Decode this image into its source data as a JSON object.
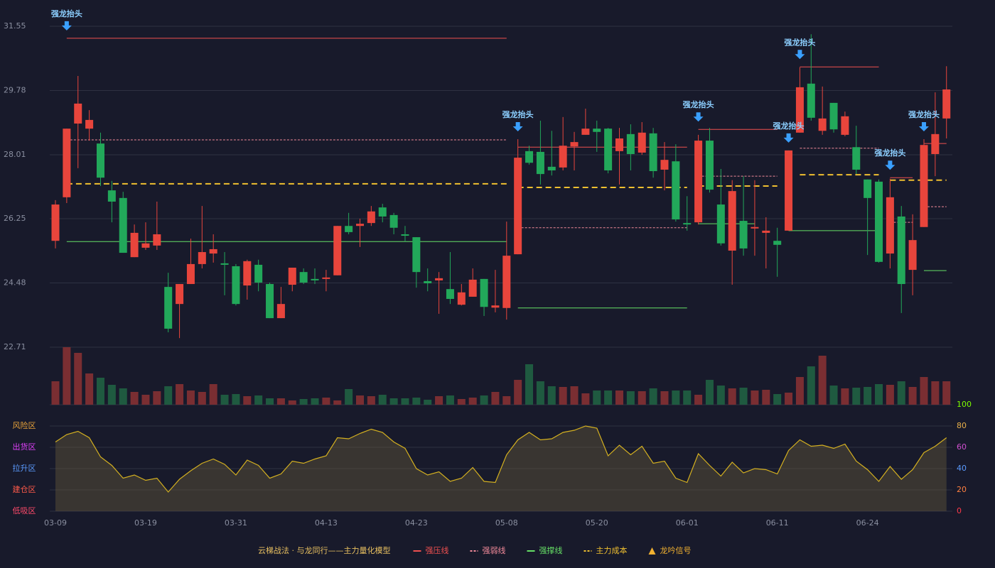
{
  "chart_data": {
    "type": "candlestick",
    "categories": [
      "03-09",
      null,
      null,
      null,
      null,
      null,
      null,
      null,
      "03-19",
      null,
      null,
      null,
      null,
      null,
      null,
      null,
      "03-31",
      null,
      null,
      null,
      null,
      null,
      null,
      null,
      "04-13",
      null,
      null,
      null,
      null,
      null,
      null,
      null,
      "04-23",
      null,
      null,
      null,
      null,
      null,
      null,
      null,
      "05-08",
      null,
      null,
      null,
      null,
      null,
      null,
      null,
      "05-20",
      null,
      null,
      null,
      null,
      null,
      null,
      null,
      "06-01",
      null,
      null,
      null,
      null,
      null,
      null,
      null,
      "06-11",
      null,
      null,
      null,
      null,
      null,
      null,
      null,
      "06-24",
      null,
      null,
      null,
      null,
      null,
      null,
      null
    ],
    "open": [
      25.64,
      26.84,
      28.87,
      28.73,
      28.32,
      27.03,
      26.82,
      25.19,
      25.45,
      25.51,
      24.37,
      23.9,
      24.45,
      25.0,
      25.29,
      25.02,
      24.94,
      24.41,
      24.98,
      24.45,
      23.51,
      24.43,
      24.78,
      24.59,
      24.59,
      24.69,
      26.05,
      26.05,
      26.13,
      26.56,
      26.35,
      25.82,
      25.74,
      24.53,
      24.55,
      24.31,
      23.88,
      24.1,
      24.59,
      23.8,
      23.79,
      25.27,
      28.11,
      28.09,
      27.68,
      27.66,
      28.24,
      28.56,
      28.73,
      28.73,
      28.11,
      28.58,
      28.07,
      28.6,
      27.6,
      27.83,
      26.13,
      26.15,
      28.4,
      26.64,
      25.37,
      26.19,
      25.98,
      25.86,
      25.64,
      25.92,
      28.62,
      29.97,
      28.67,
      29.44,
      28.56,
      28.22,
      27.33,
      27.27,
      25.29,
      26.31,
      24.84,
      26.02,
      28.03,
      29.01
    ],
    "close": [
      26.64,
      28.73,
      29.42,
      28.97,
      27.38,
      26.72,
      25.31,
      25.86,
      25.57,
      25.82,
      23.22,
      24.45,
      25.0,
      25.33,
      25.41,
      24.98,
      23.9,
      25.08,
      24.49,
      23.51,
      23.9,
      24.9,
      24.49,
      24.55,
      24.63,
      26.05,
      25.88,
      26.11,
      26.45,
      26.31,
      26.0,
      25.78,
      24.78,
      24.47,
      24.61,
      24.04,
      24.22,
      24.57,
      23.82,
      23.86,
      25.23,
      27.93,
      27.79,
      27.48,
      27.58,
      28.26,
      28.36,
      28.73,
      28.64,
      27.58,
      28.46,
      28.03,
      28.62,
      27.56,
      27.87,
      26.23,
      26.09,
      28.4,
      27.05,
      25.57,
      27.01,
      25.43,
      26.02,
      25.92,
      25.53,
      28.13,
      29.87,
      29.03,
      29.01,
      28.71,
      29.07,
      27.6,
      26.82,
      25.06,
      26.84,
      24.45,
      25.66,
      28.28,
      28.58,
      29.81
    ],
    "high": [
      26.76,
      28.73,
      30.18,
      29.24,
      28.62,
      27.29,
      26.99,
      26.09,
      26.15,
      26.72,
      24.76,
      24.45,
      25.7,
      26.6,
      25.82,
      25.33,
      25.0,
      25.12,
      25.12,
      24.49,
      24.37,
      24.9,
      24.88,
      24.88,
      24.84,
      26.05,
      26.41,
      26.25,
      26.6,
      26.66,
      26.41,
      26.05,
      25.74,
      24.88,
      24.78,
      25.33,
      24.45,
      24.88,
      24.59,
      24.84,
      26.17,
      28.44,
      28.26,
      28.95,
      28.67,
      29.05,
      28.64,
      29.28,
      28.95,
      28.75,
      28.75,
      28.85,
      28.91,
      28.75,
      28.36,
      28.3,
      26.87,
      28.56,
      28.75,
      27.62,
      27.31,
      27.42,
      27.31,
      26.29,
      26.0,
      28.13,
      30.42,
      31.33,
      29.89,
      29.44,
      29.2,
      28.81,
      27.33,
      27.33,
      27.35,
      26.6,
      26.37,
      28.44,
      29.73,
      30.45
    ],
    "low": [
      25.43,
      26.68,
      27.64,
      28.4,
      27.15,
      26.15,
      25.31,
      25.19,
      25.39,
      25.39,
      23.12,
      22.96,
      24.45,
      24.88,
      25.04,
      24.14,
      23.86,
      24.02,
      24.25,
      23.51,
      23.51,
      24.25,
      24.45,
      24.45,
      24.25,
      24.69,
      25.82,
      25.47,
      26.05,
      26.15,
      25.82,
      25.62,
      24.35,
      24.25,
      23.63,
      23.9,
      23.86,
      24.1,
      23.57,
      23.67,
      23.47,
      25.27,
      27.74,
      27.19,
      27.44,
      27.58,
      27.58,
      28.56,
      28.09,
      27.5,
      27.19,
      27.58,
      28.01,
      27.38,
      27.03,
      26.17,
      25.92,
      26.09,
      26.97,
      25.51,
      24.43,
      25.23,
      25.23,
      24.88,
      24.65,
      25.92,
      28.62,
      28.95,
      28.56,
      28.62,
      28.52,
      27.48,
      25.25,
      25.04,
      24.88,
      23.65,
      24.14,
      26.02,
      27.42,
      28.46
    ],
    "volume": [
      33,
      81,
      73,
      44,
      38,
      28,
      23,
      18,
      14,
      19,
      26,
      29,
      20,
      18,
      29,
      14,
      15,
      12,
      13,
      9,
      9,
      6,
      8,
      9,
      10,
      6,
      22,
      13,
      12,
      14,
      9,
      9,
      10,
      7,
      12,
      13,
      8,
      10,
      13,
      18,
      12,
      35,
      57,
      33,
      26,
      25,
      26,
      16,
      20,
      20,
      20,
      19,
      19,
      23,
      19,
      20,
      20,
      14,
      35,
      27,
      23,
      24,
      20,
      21,
      15,
      17,
      39,
      54,
      69,
      27,
      23,
      24,
      25,
      29,
      28,
      33,
      25,
      39,
      33,
      33
    ],
    "up_color": "#e8453c",
    "down_color": "#22a85a",
    "ylim": [
      22.71,
      31.55
    ],
    "yticks": [
      31.55,
      29.78,
      28.01,
      26.25,
      24.48,
      22.71
    ],
    "grid": true,
    "lines": [
      {
        "name": "强压线",
        "color": "#f05050",
        "dashed": false,
        "segments": [
          {
            "from": 1,
            "to": 40,
            "value": 31.22
          },
          {
            "from": 41,
            "to": 56,
            "value": 28.22
          },
          {
            "from": 57,
            "to": 64,
            "value": 28.71
          },
          {
            "from": 66,
            "to": 73,
            "value": 30.43
          },
          {
            "from": 74,
            "to": 76,
            "value": 27.38
          },
          {
            "from": 77,
            "to": 79,
            "value": 28.32
          }
        ]
      },
      {
        "name": "强弱线",
        "color": "#f28a9a",
        "dashed": true,
        "segments": [
          {
            "from": 1,
            "to": 40,
            "value": 28.42
          },
          {
            "from": 41,
            "to": 56,
            "value": 26.0
          },
          {
            "from": 57,
            "to": 64,
            "value": 27.42
          },
          {
            "from": 66,
            "to": 73,
            "value": 28.19
          },
          {
            "from": 74,
            "to": 76,
            "value": 26.15
          },
          {
            "from": 77,
            "to": 79,
            "value": 26.58
          }
        ]
      },
      {
        "name": "强撑线",
        "color": "#66e066",
        "dashed": false,
        "segments": [
          {
            "from": 1,
            "to": 40,
            "value": 25.62
          },
          {
            "from": 41,
            "to": 56,
            "value": 23.79
          },
          {
            "from": 57,
            "to": 62,
            "value": 26.11
          },
          {
            "from": 65,
            "to": 73,
            "value": 25.92
          },
          {
            "from": 77,
            "to": 79,
            "value": 24.82
          }
        ]
      },
      {
        "name": "主力成本",
        "color": "#f0c030",
        "dashed": true,
        "segments": [
          {
            "from": 1,
            "to": 40,
            "value": 27.21
          },
          {
            "from": 41,
            "to": 56,
            "value": 27.11
          },
          {
            "from": 57,
            "to": 64,
            "value": 27.15
          },
          {
            "from": 66,
            "to": 73,
            "value": 27.46
          },
          {
            "from": 74,
            "to": 79,
            "value": 27.31
          }
        ]
      }
    ],
    "signals": [
      {
        "index": 1,
        "label": "强龙抬头"
      },
      {
        "index": 41,
        "label": "强龙抬头"
      },
      {
        "index": 57,
        "label": "强龙抬头"
      },
      {
        "index": 65,
        "label": "强龙抬头"
      },
      {
        "index": 66,
        "label": "强龙抬头"
      },
      {
        "index": 74,
        "label": "强龙抬头"
      },
      {
        "index": 77,
        "label": "强龙抬头"
      }
    ],
    "signal_color": "#3aa0ff",
    "indicator": {
      "values": [
        65,
        72,
        75,
        69,
        51,
        43,
        31,
        34,
        29,
        31,
        18,
        30,
        38,
        45,
        49,
        44,
        34,
        48,
        43,
        31,
        35,
        47,
        45,
        49,
        52,
        69,
        68,
        73,
        77,
        74,
        65,
        59,
        40,
        34,
        37,
        28,
        31,
        41,
        28,
        27,
        53,
        67,
        74,
        67,
        68,
        74,
        76,
        80,
        78,
        52,
        62,
        53,
        61,
        45,
        47,
        31,
        27,
        54,
        43,
        33,
        46,
        36,
        40,
        39,
        35,
        57,
        67,
        61,
        62,
        59,
        63,
        47,
        39,
        28,
        42,
        30,
        39,
        55,
        61,
        69
      ],
      "color": "#d4b020",
      "ylim": [
        0,
        100
      ],
      "yticks": [
        0,
        20,
        40,
        60,
        80,
        100
      ],
      "ytick_colors": [
        "#ff3a4a",
        "#ff8040",
        "#5b9bff",
        "#d050d0",
        "#e8b04a",
        "#7cfc00"
      ],
      "zones": [
        {
          "value": 80,
          "label": "风险区",
          "color": "#e8a33a"
        },
        {
          "value": 60,
          "label": "出货区",
          "color": "#e040fb"
        },
        {
          "value": 40,
          "label": "拉升区",
          "color": "#5b9bff"
        },
        {
          "value": 20,
          "label": "建仓区",
          "color": "#ff5a4a"
        },
        {
          "value": 0,
          "label": "低吸区",
          "color": "#ff4a6a"
        }
      ]
    },
    "legend": {
      "title": "云梯战法 · 与龙同行——主力量化模型",
      "title_color": "#e8c060",
      "signal_name": "龙吟信号",
      "signal_color": "#f0b030"
    }
  }
}
